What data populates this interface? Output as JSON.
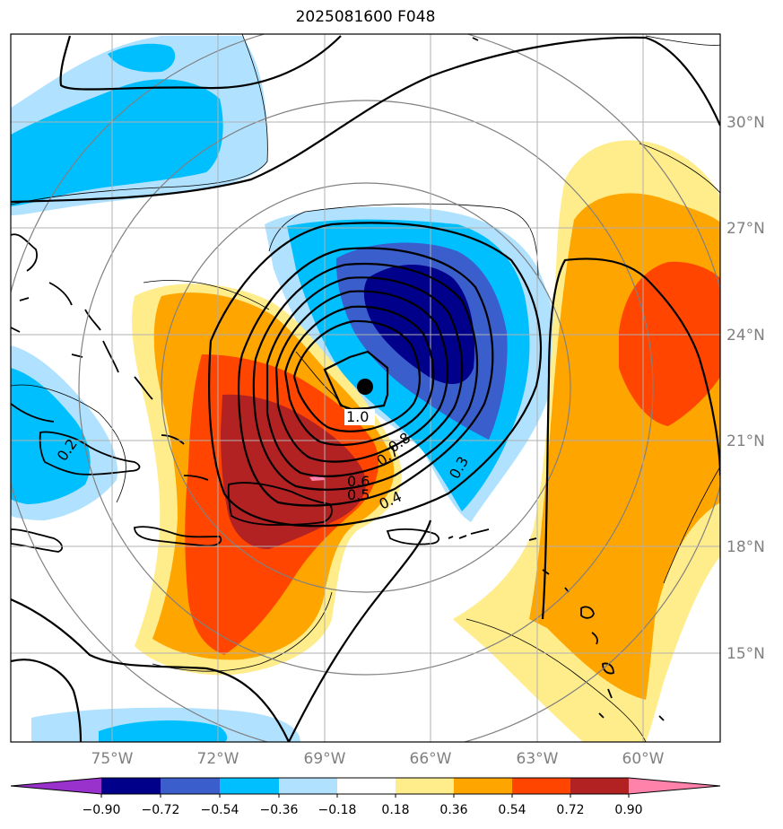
{
  "title": "2025081600 F048",
  "map": {
    "lat_labels": [
      "30°N",
      "27°N",
      "24°N",
      "21°N",
      "18°N",
      "15°N"
    ],
    "lon_labels": [
      "75°W",
      "72°W",
      "69°W",
      "66°W",
      "63°W",
      "60°W"
    ],
    "contour_labels": [
      "1.0",
      "0.8",
      "0.7",
      "0.6",
      "0.5",
      "0.4",
      "0.3",
      "0.2"
    ],
    "center_marker": "storm-center"
  },
  "colorbar": {
    "ticks": [
      "−0.90",
      "−0.72",
      "−0.54",
      "−0.36",
      "−0.18",
      "0.18",
      "0.36",
      "0.54",
      "0.72",
      "0.90"
    ],
    "colors": [
      "#9932cc",
      "#00008b",
      "#3a5fcd",
      "#00bfff",
      "#b0e2ff",
      "#ffffff",
      "#ffec8b",
      "#ffa500",
      "#ff4500",
      "#b22222",
      "#ff82ab"
    ]
  }
}
